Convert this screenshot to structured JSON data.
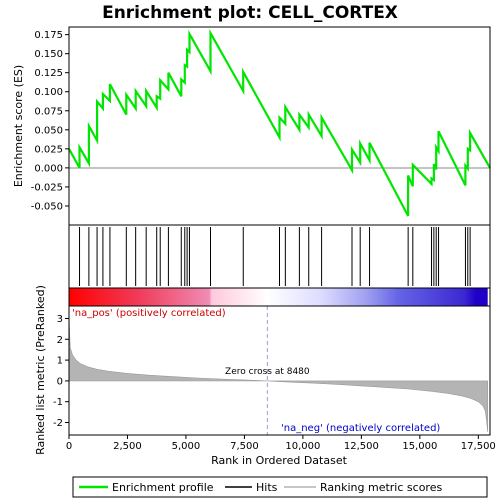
{
  "chart_data": {
    "type": "line",
    "title": "Enrichment plot: CELL_CORTEX",
    "xlabel": "Rank in Ordered Dataset",
    "top_ylabel": "Enrichment score (ES)",
    "bottom_ylabel": "Ranked list metric (PreRanked)",
    "xlim": [
      0,
      18000
    ],
    "es_ylim": [
      -0.075,
      0.185
    ],
    "metric_ylim": [
      -2.6,
      3.6
    ],
    "x_ticks": [
      "0",
      "2,500",
      "5,000",
      "7,500",
      "10,000",
      "12,500",
      "15,000",
      "17,500"
    ],
    "x_tick_values": [
      0,
      2500,
      5000,
      7500,
      10000,
      12500,
      15000,
      17500
    ],
    "es_ticks": [
      "-0.050",
      "-0.025",
      "0.000",
      "0.025",
      "0.050",
      "0.075",
      "0.100",
      "0.125",
      "0.150",
      "0.175"
    ],
    "es_tick_values": [
      -0.05,
      -0.025,
      0.0,
      0.025,
      0.05,
      0.075,
      0.1,
      0.125,
      0.15,
      0.175
    ],
    "metric_ticks": [
      "-2",
      "-1",
      "0",
      "1",
      "2",
      "3"
    ],
    "metric_tick_values": [
      -2,
      -1,
      0,
      1,
      2,
      3
    ],
    "zero_cross_label": "Zero cross at 8480",
    "zero_cross": 8480,
    "pos_label": "'na_pos' (positively correlated)",
    "neg_label": "'na_neg' (negatively correlated)",
    "legend": [
      "Enrichment profile",
      "Hits",
      "Ranking metric scores"
    ],
    "hits": [
      450,
      850,
      1200,
      1450,
      1750,
      2450,
      2850,
      3300,
      3750,
      3900,
      4250,
      4800,
      4950,
      5050,
      5150,
      6050,
      7450,
      9000,
      9250,
      9850,
      10250,
      10800,
      12100,
      12450,
      12850,
      14500,
      14700,
      15500,
      15600,
      15700,
      15800,
      16950,
      17050,
      17150
    ],
    "es_profile": {
      "x": [
        0,
        450,
        450,
        850,
        850,
        1200,
        1200,
        1450,
        1450,
        1750,
        1750,
        2450,
        2450,
        2850,
        2850,
        3300,
        3300,
        3750,
        3750,
        3900,
        3900,
        4250,
        4250,
        4800,
        4800,
        4950,
        4950,
        5050,
        5050,
        5150,
        5150,
        6050,
        6050,
        7450,
        7450,
        9000,
        9000,
        9250,
        9250,
        9850,
        9850,
        10250,
        10250,
        10800,
        10800,
        12100,
        12100,
        12450,
        12450,
        12850,
        12850,
        14500,
        14500,
        14700,
        14700,
        15500,
        15500,
        15600,
        15600,
        15700,
        15700,
        15800,
        15800,
        16950,
        16950,
        17050,
        17050,
        17150,
        17150,
        18000
      ],
      "es": [
        0.025,
        0.0,
        0.027,
        0.006,
        0.055,
        0.036,
        0.087,
        0.078,
        0.097,
        0.088,
        0.11,
        0.07,
        0.096,
        0.078,
        0.101,
        0.081,
        0.101,
        0.079,
        0.094,
        0.091,
        0.115,
        0.103,
        0.125,
        0.094,
        0.116,
        0.112,
        0.135,
        0.133,
        0.155,
        0.152,
        0.176,
        0.127,
        0.177,
        0.101,
        0.126,
        0.04,
        0.066,
        0.058,
        0.08,
        0.05,
        0.07,
        0.053,
        0.07,
        0.042,
        0.066,
        -0.003,
        0.024,
        0.007,
        0.032,
        0.01,
        0.033,
        -0.063,
        -0.01,
        -0.024,
        0.004,
        -0.021,
        -0.014,
        -0.016,
        0.005,
        -0.002,
        0.027,
        0.022,
        0.048,
        -0.023,
        0.003,
        -0.001,
        0.025,
        0.023,
        0.046,
        0.0
      ]
    },
    "metric_profile": {
      "x": [
        0,
        50,
        150,
        300,
        500,
        800,
        1200,
        1700,
        2500,
        3500,
        4500,
        5500,
        6500,
        7500,
        8480,
        9500,
        10500,
        11500,
        12500,
        13500,
        14500,
        15500,
        16200,
        16800,
        17200,
        17500,
        17700,
        17800,
        17850,
        17900
      ],
      "value": [
        3.2,
        1.6,
        1.25,
        1.0,
        0.82,
        0.68,
        0.56,
        0.46,
        0.36,
        0.27,
        0.2,
        0.14,
        0.09,
        0.05,
        0.0,
        -0.06,
        -0.11,
        -0.17,
        -0.24,
        -0.31,
        -0.39,
        -0.5,
        -0.6,
        -0.72,
        -0.85,
        -1.0,
        -1.2,
        -1.45,
        -1.9,
        -2.45
      ]
    },
    "heat_bar_stops": [
      {
        "x": 0,
        "color": "#ff0000"
      },
      {
        "x": 3000,
        "color": "#f03c5a"
      },
      {
        "x": 6000,
        "color": "#f08cb4"
      },
      {
        "x": 6100,
        "color": "#ffc8dc"
      },
      {
        "x": 8480,
        "color": "#ffffff"
      },
      {
        "x": 10800,
        "color": "#dcdcff"
      },
      {
        "x": 12700,
        "color": "#a0a0f0"
      },
      {
        "x": 14100,
        "color": "#6464e6"
      },
      {
        "x": 16900,
        "color": "#3c28d2"
      },
      {
        "x": 17400,
        "color": "#1e00c8"
      },
      {
        "x": 17900,
        "color": "#1e00c8"
      }
    ]
  }
}
